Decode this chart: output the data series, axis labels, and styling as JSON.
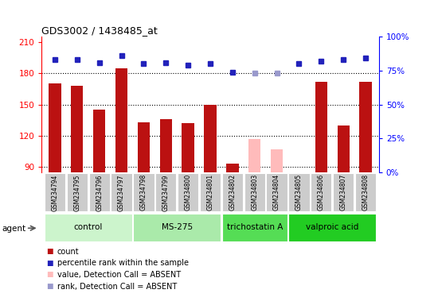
{
  "title": "GDS3002 / 1438485_at",
  "samples": [
    "GSM234794",
    "GSM234795",
    "GSM234796",
    "GSM234797",
    "GSM234798",
    "GSM234799",
    "GSM234800",
    "GSM234801",
    "GSM234802",
    "GSM234803",
    "GSM234804",
    "GSM234805",
    "GSM234806",
    "GSM234807",
    "GSM234808"
  ],
  "count_present": [
    170,
    168,
    145,
    185,
    133,
    136,
    132,
    150,
    93,
    null,
    null,
    null,
    172,
    130,
    172
  ],
  "count_absent": [
    null,
    null,
    null,
    null,
    null,
    null,
    null,
    null,
    null,
    117,
    107,
    null,
    null,
    null,
    null
  ],
  "rank_present": [
    83,
    83,
    81,
    86,
    80,
    81,
    79,
    80,
    74,
    null,
    null,
    80,
    82,
    83,
    84
  ],
  "rank_absent": [
    null,
    null,
    null,
    null,
    null,
    null,
    null,
    null,
    null,
    73,
    73,
    null,
    null,
    null,
    null
  ],
  "ylim_left": [
    85,
    215
  ],
  "ylim_right": [
    0,
    100
  ],
  "yticks_left": [
    90,
    120,
    150,
    180,
    210
  ],
  "yticks_right": [
    0,
    25,
    50,
    75,
    100
  ],
  "ytick_labels_right": [
    "0%",
    "25%",
    "50%",
    "75%",
    "100%"
  ],
  "groups": [
    {
      "label": "control",
      "start": 0,
      "end": 3,
      "color": "#ccf4cc"
    },
    {
      "label": "MS-275",
      "start": 4,
      "end": 7,
      "color": "#aaeaaa"
    },
    {
      "label": "trichostatin A",
      "start": 8,
      "end": 10,
      "color": "#55dd55"
    },
    {
      "label": "valproic acid",
      "start": 11,
      "end": 14,
      "color": "#22cc22"
    }
  ],
  "bar_color_present": "#bb1111",
  "bar_color_absent": "#ffbbbb",
  "dot_color_present": "#2222bb",
  "dot_color_absent": "#9999cc",
  "sample_bg": "#cccccc",
  "plot_bg": "#ffffff"
}
